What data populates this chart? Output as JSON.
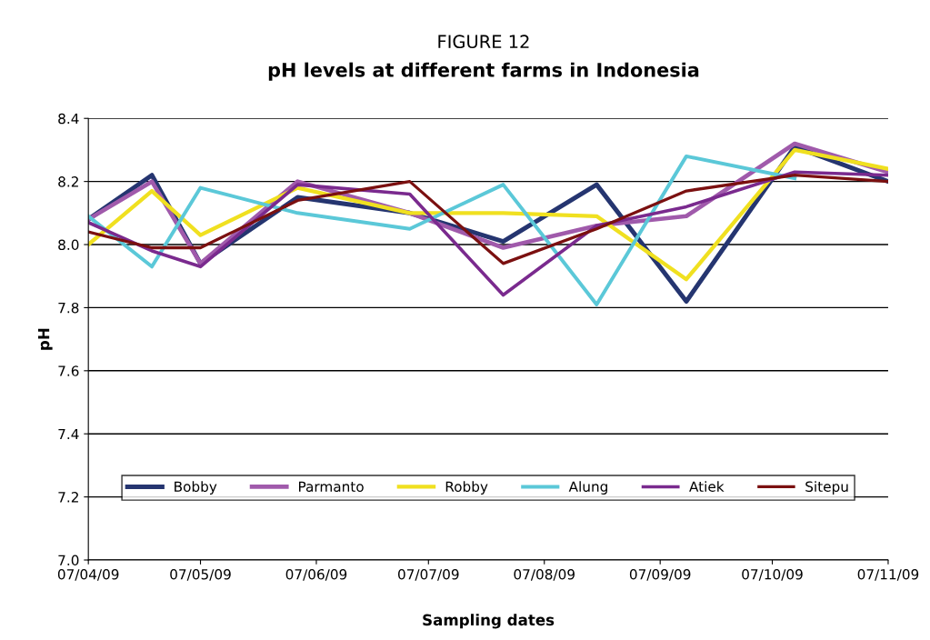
{
  "chart_data": {
    "type": "line",
    "title": "FIGURE 12",
    "subtitle": "pH levels at different farms in Indonesia",
    "xlabel": "Sampling dates",
    "ylabel": "pH",
    "x": [
      "2009-04-07",
      "2009-04-24",
      "2009-05-07",
      "2009-06-02",
      "2009-07-02",
      "2009-07-27",
      "2009-08-21",
      "2009-09-14",
      "2009-10-13",
      "2009-11-07"
    ],
    "series": [
      {
        "name": "Bobby",
        "color": "#253570",
        "values": [
          8.08,
          8.22,
          7.94,
          8.15,
          8.1,
          8.01,
          8.19,
          7.82,
          8.31,
          8.2
        ]
      },
      {
        "name": "Parmanto",
        "color": "#a05aab",
        "values": [
          8.08,
          8.2,
          7.94,
          8.2,
          8.1,
          7.99,
          8.06,
          8.09,
          8.32,
          8.23
        ]
      },
      {
        "name": "Robby",
        "color": "#f0e020",
        "values": [
          8.0,
          8.17,
          8.03,
          8.18,
          8.1,
          8.1,
          8.09,
          7.89,
          8.3,
          8.24
        ]
      },
      {
        "name": "Alung",
        "color": "#5bc8d8",
        "values": [
          8.09,
          7.93,
          8.18,
          8.1,
          8.05,
          8.19,
          7.81,
          8.28,
          8.21,
          null
        ]
      },
      {
        "name": "Atiek",
        "color": "#7a2a8e",
        "values": [
          8.07,
          7.98,
          7.93,
          8.19,
          8.16,
          7.84,
          8.06,
          8.12,
          8.23,
          8.22
        ]
      },
      {
        "name": "Sitepu",
        "color": "#7b1010",
        "values": [
          8.04,
          7.99,
          7.99,
          8.14,
          8.2,
          7.94,
          8.05,
          8.17,
          8.22,
          8.2
        ]
      }
    ],
    "xlim": [
      "2009-04-07",
      "2009-11-07"
    ],
    "xticks": [
      {
        "value": "2009-04-07",
        "label": "07/04/09"
      },
      {
        "value": "2009-05-07",
        "label": "07/05/09"
      },
      {
        "value": "2009-06-07",
        "label": "07/06/09"
      },
      {
        "value": "2009-07-07",
        "label": "07/07/09"
      },
      {
        "value": "2009-08-07",
        "label": "07/08/09"
      },
      {
        "value": "2009-09-07",
        "label": "07/09/09"
      },
      {
        "value": "2009-10-07",
        "label": "07/10/09"
      },
      {
        "value": "2009-11-07",
        "label": "07/11/09"
      }
    ],
    "ylim": [
      7.0,
      8.4
    ],
    "yticks": [
      {
        "value": 7.0,
        "label": "7.0"
      },
      {
        "value": 7.2,
        "label": "7.2"
      },
      {
        "value": 7.4,
        "label": "7.4"
      },
      {
        "value": 7.6,
        "label": "7.6"
      },
      {
        "value": 7.8,
        "label": "7.8"
      },
      {
        "value": 8.0,
        "label": "8.0"
      },
      {
        "value": 8.2,
        "label": "8.2"
      },
      {
        "value": 8.4,
        "label": "8.4"
      }
    ],
    "grid": "y",
    "legend": "bottom",
    "marker": "none",
    "line_style": "solid"
  }
}
